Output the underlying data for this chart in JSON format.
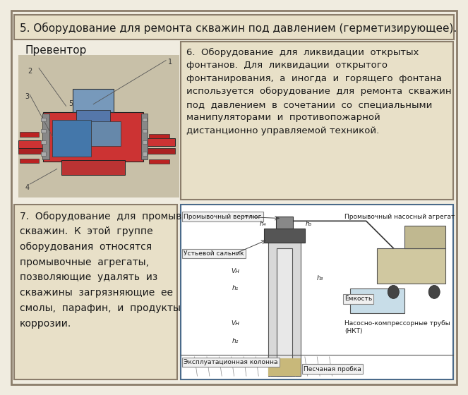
{
  "bg_color": "#f0ece0",
  "outer_border_color": "#8B7D6B",
  "title_text": "5. Оборудование для ремонта скважин под давлением (герметизирующее).",
  "title_bg": "#e8e0c8",
  "title_border": "#8B7D6B",
  "label_preventor": "Превентор",
  "box6_text": "6.  Оборудование  для  ликвидации  открытых\nфонтанов.  Для  ликвидации  открытого\nфонтанирования,  а  иногда  и  горящего  фонтана\nиспользуется  оборудование  для  ремонта  скважин\nпод  давлением  в  сочетании  со  специальными\nманипуляторами  и  противопожарной\nдистанционно управляемой техникой.",
  "box7_text": "7.  Оборудование  для  промывки\nскважин.  К  этой  группе\nоборудования  относятся\nпромывочные  агрегаты,\nпозволяющие  удалять  из\nскважины  загрязняющие  ее\nсмолы,  парафин,  и  продукты\nкоррозии.",
  "font_size_title": 11,
  "font_size_body6": 9.5,
  "font_size_body7": 10,
  "font_size_label": 11,
  "font_size_diag": 7,
  "text_color": "#1a1a1a",
  "box_bg": "#e8e0c8",
  "box_border": "#8B7D6B",
  "diag_bg": "#ffffff",
  "diag_border": "#4a6a8a",
  "diag_label_bg": "#f0f0f0",
  "diag_label_border": "#888888"
}
